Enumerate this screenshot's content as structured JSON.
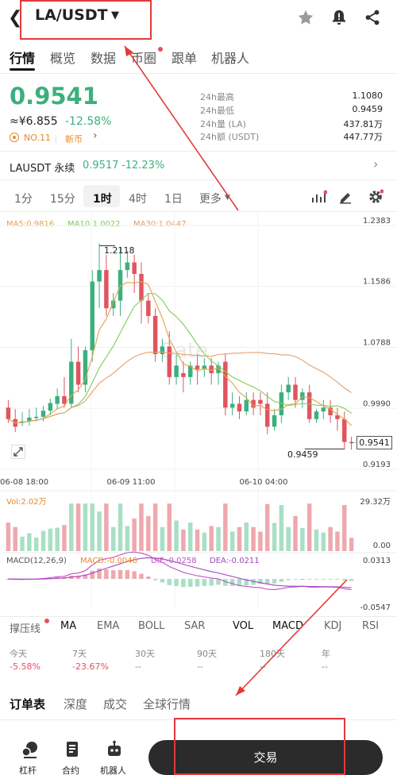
{
  "header": {
    "pair": "LA/USDT"
  },
  "tabs": [
    "行情",
    "概览",
    "数据",
    "币圈",
    "跟单",
    "机器人"
  ],
  "ticker": {
    "price": "0.9541",
    "cny": "≈¥6.855",
    "change": "-12.58%",
    "rank": "NO.11",
    "tag": "新币",
    "stats": [
      {
        "label": "24h最高",
        "value": "1.1080"
      },
      {
        "label": "24h最低",
        "value": "0.9459"
      },
      {
        "label": "24h量 (LA)",
        "value": "437.81万"
      },
      {
        "label": "24h额 (USDT)",
        "value": "447.77万"
      }
    ]
  },
  "perp": {
    "name": "LAUSDT 永续",
    "price": "0.9517",
    "change": "-12.23%"
  },
  "intervals": [
    "1分",
    "15分",
    "1时",
    "4时",
    "1日",
    "更多"
  ],
  "active_interval": "1时",
  "ma_legend": {
    "ma5": "MA5:0.9816",
    "ma10": "MA10:1.0022",
    "ma30": "MA30:1.0447"
  },
  "price_axis": [
    "1.2383",
    "1.1586",
    "1.0788",
    "0.9990",
    "0.9193"
  ],
  "time_axis": [
    "06-08 18:00",
    "06-09 11:00",
    "06-10 04:00"
  ],
  "watermark": "Gate",
  "annotations": {
    "high": "1.2118",
    "low": "0.9459",
    "last": "0.9541"
  },
  "volume": {
    "label": "Vol:2.02万",
    "max": "29.32万",
    "min": "0.00"
  },
  "macd": {
    "label": "MACD(12,26,9)",
    "macd": "MACD:-0.0046",
    "dif": "DIF:-0.0258",
    "dea": "DEA:-0.0211",
    "max": "0.0313",
    "min": "-0.0547"
  },
  "indicators": [
    "撑压线",
    "MA",
    "EMA",
    "BOLL",
    "SAR",
    "VOL",
    "MACD",
    "KDJ",
    "RSI"
  ],
  "performance": [
    {
      "label": "今天",
      "value": "-5.58%"
    },
    {
      "label": "7天",
      "value": "-23.67%"
    },
    {
      "label": "30天",
      "value": "--"
    },
    {
      "label": "90天",
      "value": "--"
    },
    {
      "label": "180天",
      "value": "--"
    },
    {
      "label": "年",
      "value": "--"
    }
  ],
  "bottom_tabs": [
    "订单表",
    "深度",
    "成交",
    "全球行情"
  ],
  "bottom_nav": [
    "杠杆",
    "合约",
    "机器人"
  ],
  "trade_label": "交易",
  "colors": {
    "up": "#3bb07e",
    "down": "#e0545f",
    "ma5": "#e1a54a",
    "ma10": "#7fce59",
    "ma30": "#e2a06e",
    "dif": "#c44fc8",
    "dea": "#a248c2"
  },
  "chart_data": {
    "type": "candlestick",
    "candles": [
      [
        1.0,
        1.01,
        0.985,
        0.98
      ],
      [
        0.985,
        0.998,
        0.975,
        0.968
      ],
      [
        0.98,
        0.994,
        0.982,
        0.976
      ],
      [
        0.982,
        0.998,
        0.987,
        0.976
      ],
      [
        0.987,
        1.0,
        0.988,
        0.982
      ],
      [
        0.988,
        1.002,
        0.996,
        0.982
      ],
      [
        0.996,
        1.012,
        1.006,
        0.99
      ],
      [
        1.005,
        1.025,
        1.015,
        0.998
      ],
      [
        1.015,
        1.04,
        1.005,
        1.0
      ],
      [
        1.005,
        1.09,
        1.06,
        1.0
      ],
      [
        1.06,
        1.08,
        1.03,
        1.02
      ],
      [
        1.03,
        1.08,
        1.075,
        1.02
      ],
      [
        1.075,
        1.18,
        1.165,
        1.06
      ],
      [
        1.165,
        1.215,
        1.18,
        1.13
      ],
      [
        1.18,
        1.2,
        1.13,
        1.12
      ],
      [
        1.13,
        1.15,
        1.14,
        1.12
      ],
      [
        1.14,
        1.21,
        1.18,
        1.12
      ],
      [
        1.18,
        1.205,
        1.19,
        1.17
      ],
      [
        1.19,
        1.2,
        1.175,
        1.15
      ],
      [
        1.175,
        1.19,
        1.14,
        1.11
      ],
      [
        1.14,
        1.15,
        1.12,
        1.11
      ],
      [
        1.12,
        1.13,
        1.07,
        1.06
      ],
      [
        1.07,
        1.09,
        1.08,
        1.06
      ],
      [
        1.08,
        1.1,
        1.04,
        1.03
      ],
      [
        1.04,
        1.07,
        1.055,
        1.03
      ],
      [
        1.045,
        1.06,
        1.04,
        1.02
      ],
      [
        1.04,
        1.06,
        1.055,
        1.03
      ],
      [
        1.055,
        1.07,
        1.05,
        1.03
      ],
      [
        1.05,
        1.065,
        1.055,
        1.04
      ],
      [
        1.055,
        1.065,
        1.045,
        1.03
      ],
      [
        1.045,
        1.06,
        1.055,
        1.03
      ],
      [
        1.06,
        1.07,
        1.0,
        0.99
      ],
      [
        1.0,
        1.02,
        1.005,
        0.99
      ],
      [
        1.005,
        1.015,
        0.995,
        0.985
      ],
      [
        0.995,
        1.02,
        1.01,
        0.99
      ],
      [
        1.01,
        1.02,
        1.0,
        0.99
      ],
      [
        1.01,
        1.02,
        1.005,
        0.99
      ],
      [
        1.005,
        1.02,
        0.975,
        0.965
      ],
      [
        0.975,
        0.998,
        0.99,
        0.97
      ],
      [
        0.99,
        1.03,
        1.02,
        0.98
      ],
      [
        1.02,
        1.04,
        1.03,
        1.01
      ],
      [
        1.03,
        1.04,
        1.01,
        1.0
      ],
      [
        1.01,
        1.025,
        1.02,
        1.0
      ],
      [
        1.02,
        1.03,
        0.985,
        0.98
      ],
      [
        0.985,
        0.998,
        0.995,
        0.98
      ],
      [
        0.995,
        1.01,
        1.0,
        0.985
      ],
      [
        1.0,
        1.01,
        0.99,
        0.98
      ],
      [
        0.99,
        1.0,
        0.985,
        0.97
      ],
      [
        0.985,
        0.995,
        0.955,
        0.945
      ],
      [
        0.955,
        0.962,
        0.954,
        0.945
      ]
    ],
    "price_range": [
      0.9193,
      1.2383
    ],
    "macd_range": [
      -0.0547,
      0.0313
    ]
  }
}
